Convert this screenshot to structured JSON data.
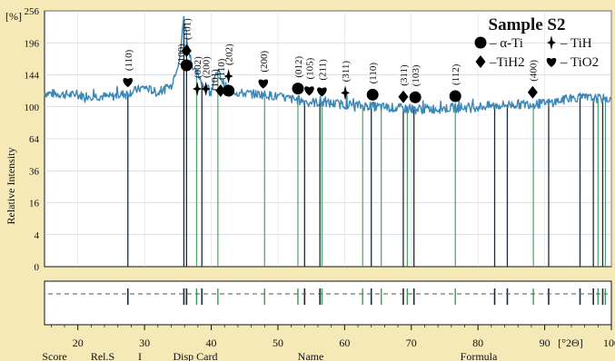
{
  "chart_data": {
    "type": "line",
    "title": "Sample S2",
    "ylabel": "Relative Intensity",
    "y_unit": "[%]",
    "x_unit": "[°2Θ]",
    "xlim": [
      15,
      100
    ],
    "ylim": [
      0,
      256
    ],
    "y_scale": "sqrt",
    "y_ticks": [
      0,
      4,
      16,
      36,
      64,
      100,
      144,
      196,
      256
    ],
    "x_ticks": [
      20,
      30,
      40,
      50,
      60,
      70,
      80,
      90,
      100
    ],
    "grid": true,
    "legend_position": "top-right",
    "legend": [
      {
        "symbol": "circle",
        "label": "– α-Ti"
      },
      {
        "symbol": "star",
        "label": "– TiH"
      },
      {
        "symbol": "diamond",
        "label": "–TiH2"
      },
      {
        "symbol": "heart",
        "label": "– TiO2"
      }
    ],
    "pattern": {
      "color": "#3b88b8",
      "baseline": [
        [
          15,
          118
        ],
        [
          20,
          115
        ],
        [
          25,
          113
        ],
        [
          27.5,
          118
        ],
        [
          30,
          126
        ],
        [
          32,
          118
        ],
        [
          34,
          128
        ],
        [
          35.3,
          170
        ],
        [
          35.9,
          245
        ],
        [
          36.5,
          190
        ],
        [
          37.4,
          150
        ],
        [
          38.2,
          142
        ],
        [
          39,
          125
        ],
        [
          40,
          122
        ],
        [
          41,
          150
        ],
        [
          42,
          128
        ],
        [
          44,
          118
        ],
        [
          48,
          116
        ],
        [
          52,
          110
        ],
        [
          55,
          106
        ],
        [
          60,
          103
        ],
        [
          65,
          100
        ],
        [
          70,
          97
        ],
        [
          75,
          98
        ],
        [
          80,
          100
        ],
        [
          85,
          103
        ],
        [
          90,
          104
        ],
        [
          95,
          112
        ],
        [
          100,
          110
        ]
      ]
    },
    "peak_annotations": [
      {
        "x": 27.5,
        "label": "(110)",
        "phase": "TiO2"
      },
      {
        "x": 35.4,
        "label": "(100)",
        "phase": ""
      },
      {
        "x": 36.3,
        "label": "(101)",
        "phase": "α-Ti + TiH2"
      },
      {
        "x": 37.9,
        "label": "(002)",
        "phase": "TiH"
      },
      {
        "x": 39.2,
        "label": "(200)",
        "phase": "TiH"
      },
      {
        "x": 40.5,
        "label": "(101)",
        "phase": ""
      },
      {
        "x": 41.4,
        "label": "(110)",
        "phase": "TiH2"
      },
      {
        "x": 42.6,
        "label": "(202)",
        "phase": "α-Ti + TiH"
      },
      {
        "x": 47.8,
        "label": "(200)",
        "phase": "TiO2"
      },
      {
        "x": 53.0,
        "label": "(012)",
        "phase": "α-Ti"
      },
      {
        "x": 54.7,
        "label": "(105)",
        "phase": "TiO2"
      },
      {
        "x": 56.6,
        "label": "(211)",
        "phase": "TiO2"
      },
      {
        "x": 60.1,
        "label": "(311)",
        "phase": "TiH"
      },
      {
        "x": 64.2,
        "label": "(110)",
        "phase": "α-Ti"
      },
      {
        "x": 68.8,
        "label": "(311)",
        "phase": "TiH2"
      },
      {
        "x": 70.6,
        "label": "(103)",
        "phase": "α-Ti"
      },
      {
        "x": 76.6,
        "label": "(112)",
        "phase": "α-Ti"
      },
      {
        "x": 88.2,
        "label": "(400)",
        "phase": "TiH2"
      }
    ],
    "reference_lines": {
      "dark": [
        27.5,
        35.9,
        36.3,
        38.6,
        54.0,
        56.3,
        64.0,
        68.8,
        70.4,
        82.5,
        84.4,
        90.6,
        95.3,
        97.3,
        98.7
      ],
      "green": [
        37.8,
        41.0,
        48.0,
        53.0,
        56.6,
        62.7,
        65.5,
        69.4,
        76.6,
        88.3,
        98.0,
        99.1
      ]
    },
    "footer_columns": [
      "Score",
      "Rel.S",
      "I",
      "Disp Card",
      "Name",
      "Formula"
    ]
  }
}
